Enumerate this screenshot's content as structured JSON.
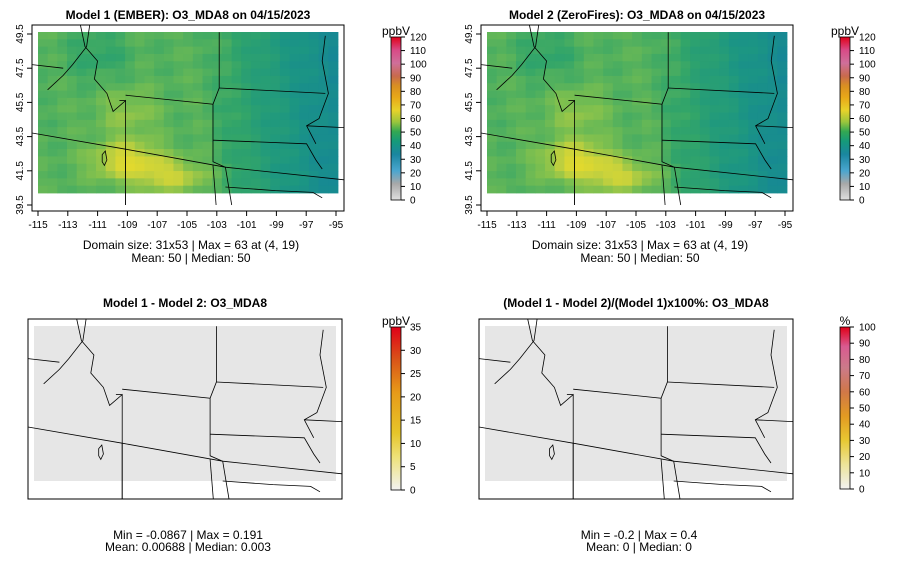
{
  "colors": {
    "background": "#ffffff",
    "diff_fill": "#e6e6e6",
    "boundary": "#000000"
  },
  "chart_data": [
    {
      "type": "heatmap",
      "title": "Model 1 (EMBER): O3_MDA8 on 04/15/2023",
      "x_ticks": [
        "-115",
        "-113",
        "-111",
        "-109",
        "-107",
        "-105",
        "-103",
        "-101",
        "-99",
        "-97",
        "-95"
      ],
      "y_ticks": [
        "39.5",
        "41.5",
        "43.5",
        "45.5",
        "47.5",
        "49.5"
      ],
      "xlim": [
        -115,
        -95
      ],
      "ylim": [
        39.5,
        49.5
      ],
      "colorbar": {
        "unit": "ppbV",
        "min": 0,
        "max": 120,
        "ticks": [
          "0",
          "10",
          "20",
          "30",
          "40",
          "50",
          "60",
          "70",
          "80",
          "90",
          "100",
          "110",
          "120"
        ]
      },
      "stats": [
        "Domain size: 31x53 | Max = 63 at (4, 19)",
        "Mean: 50 |  Median: 50"
      ]
    },
    {
      "type": "heatmap",
      "title": "Model 2 (ZeroFires): O3_MDA8 on 04/15/2023",
      "x_ticks": [
        "-115",
        "-113",
        "-111",
        "-109",
        "-107",
        "-105",
        "-103",
        "-101",
        "-99",
        "-97",
        "-95"
      ],
      "y_ticks": [
        "39.5",
        "41.5",
        "43.5",
        "45.5",
        "47.5",
        "49.5"
      ],
      "xlim": [
        -115,
        -95
      ],
      "ylim": [
        39.5,
        49.5
      ],
      "colorbar": {
        "unit": "ppbV",
        "min": 0,
        "max": 120,
        "ticks": [
          "0",
          "10",
          "20",
          "30",
          "40",
          "50",
          "60",
          "70",
          "80",
          "90",
          "100",
          "110",
          "120"
        ]
      },
      "stats": [
        "Domain size: 31x53 | Max = 63 at (4, 19)",
        "Mean: 50 |  Median: 50"
      ]
    },
    {
      "type": "heatmap",
      "title": "Model 1 - Model 2: O3_MDA8",
      "colorbar": {
        "unit": "ppbV",
        "min": 0,
        "max": 35,
        "ticks": [
          "0",
          "5",
          "10",
          "15",
          "20",
          "25",
          "30",
          "35"
        ]
      },
      "stats": [
        "Min = -0.0867 | Max = 0.191",
        "Mean: 0.00688 |  Median: 0.003"
      ]
    },
    {
      "type": "heatmap",
      "title": "(Model 1 - Model 2)/(Model 1)x100%: O3_MDA8",
      "colorbar": {
        "unit": "%",
        "min": 0,
        "max": 100,
        "ticks": [
          "0",
          "10",
          "20",
          "30",
          "40",
          "50",
          "60",
          "70",
          "80",
          "90",
          "100"
        ]
      },
      "stats": [
        "Min = -0.2 | Max = 0.4",
        "Mean: 0 |  Median: 0"
      ]
    }
  ]
}
